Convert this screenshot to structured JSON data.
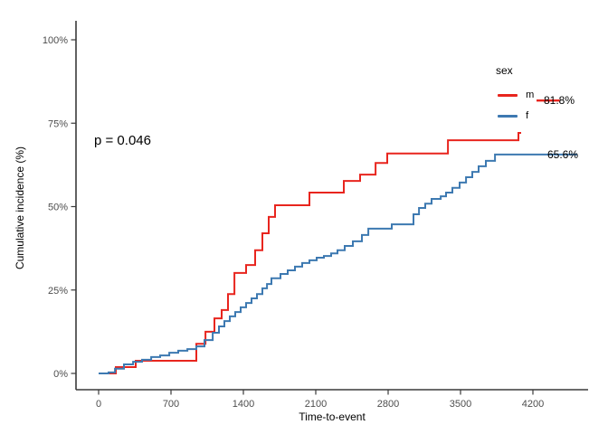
{
  "chart_data": {
    "type": "line",
    "subtype": "step-cumulative-incidence",
    "title": "",
    "xlabel": "Time-to-event",
    "ylabel": "Cumulative incidence (%)",
    "p_value_label": "p = 0.046",
    "grid": "off",
    "xlim": [
      -220,
      4735
    ],
    "ylim": [
      -4.9,
      105.7
    ],
    "x_ticks": [
      0,
      700,
      1400,
      2100,
      2800,
      3500,
      4200
    ],
    "y_ticks": [
      {
        "value": 0,
        "label": "0%"
      },
      {
        "value": 25,
        "label": "25%"
      },
      {
        "value": 50,
        "label": "50%"
      },
      {
        "value": 75,
        "label": "75%"
      },
      {
        "value": 100,
        "label": "100%"
      }
    ],
    "legend": {
      "title": "sex",
      "position": "inside-top-right",
      "items": [
        {
          "label": "m",
          "color": "#e8251e"
        },
        {
          "label": "f",
          "color": "#3d79b1"
        }
      ]
    },
    "series": [
      {
        "name": "m",
        "color": "#e8251e",
        "end_label": "81.8%",
        "end_label_value": 81.8,
        "end_label_segment": {
          "t1": 4235,
          "t2": 4460,
          "pct": 81.8
        },
        "t_end": 4086,
        "points": [
          [
            0,
            0
          ],
          [
            166,
            1.9
          ],
          [
            359,
            3.8
          ],
          [
            945,
            8.9
          ],
          [
            1033,
            12.5
          ],
          [
            1120,
            16.5
          ],
          [
            1190,
            19.0
          ],
          [
            1251,
            23.8
          ],
          [
            1313,
            30.1
          ],
          [
            1426,
            32.5
          ],
          [
            1514,
            36.9
          ],
          [
            1584,
            42.0
          ],
          [
            1645,
            46.9
          ],
          [
            1706,
            50.4
          ],
          [
            2039,
            54.2
          ],
          [
            2371,
            57.7
          ],
          [
            2529,
            59.6
          ],
          [
            2678,
            63.1
          ],
          [
            2791,
            65.9
          ],
          [
            3378,
            69.9
          ],
          [
            4060,
            72.1
          ]
        ]
      },
      {
        "name": "f",
        "color": "#3d79b1",
        "end_label": "65.6%",
        "end_label_value": 65.6,
        "t_end": 4629,
        "points": [
          [
            0,
            0
          ],
          [
            96,
            0.3
          ],
          [
            158,
            1.4
          ],
          [
            245,
            2.7
          ],
          [
            333,
            3.5
          ],
          [
            420,
            4.1
          ],
          [
            508,
            4.9
          ],
          [
            595,
            5.4
          ],
          [
            683,
            6.2
          ],
          [
            770,
            6.8
          ],
          [
            858,
            7.3
          ],
          [
            945,
            8.1
          ],
          [
            1024,
            10.0
          ],
          [
            1103,
            12.2
          ],
          [
            1164,
            14.1
          ],
          [
            1216,
            15.7
          ],
          [
            1269,
            17.1
          ],
          [
            1321,
            18.4
          ],
          [
            1374,
            19.8
          ],
          [
            1426,
            21.1
          ],
          [
            1479,
            22.5
          ],
          [
            1531,
            23.8
          ],
          [
            1584,
            25.5
          ],
          [
            1628,
            26.8
          ],
          [
            1671,
            28.5
          ],
          [
            1759,
            29.8
          ],
          [
            1829,
            30.9
          ],
          [
            1899,
            32.0
          ],
          [
            1969,
            33.1
          ],
          [
            2039,
            33.9
          ],
          [
            2109,
            34.7
          ],
          [
            2179,
            35.2
          ],
          [
            2249,
            36.0
          ],
          [
            2310,
            36.9
          ],
          [
            2380,
            38.2
          ],
          [
            2459,
            39.6
          ],
          [
            2546,
            41.5
          ],
          [
            2608,
            43.4
          ],
          [
            2835,
            44.7
          ],
          [
            3045,
            47.7
          ],
          [
            3098,
            49.6
          ],
          [
            3159,
            50.9
          ],
          [
            3220,
            52.3
          ],
          [
            3308,
            53.1
          ],
          [
            3360,
            54.2
          ],
          [
            3421,
            55.6
          ],
          [
            3491,
            57.2
          ],
          [
            3553,
            58.8
          ],
          [
            3614,
            60.4
          ],
          [
            3675,
            62.1
          ],
          [
            3745,
            63.7
          ],
          [
            3833,
            65.6
          ]
        ]
      }
    ]
  },
  "colors": {
    "background": "#ffffff",
    "axis_line": "#3a3a3a",
    "tick_label": "#4d4d4d",
    "text": "#000000"
  }
}
